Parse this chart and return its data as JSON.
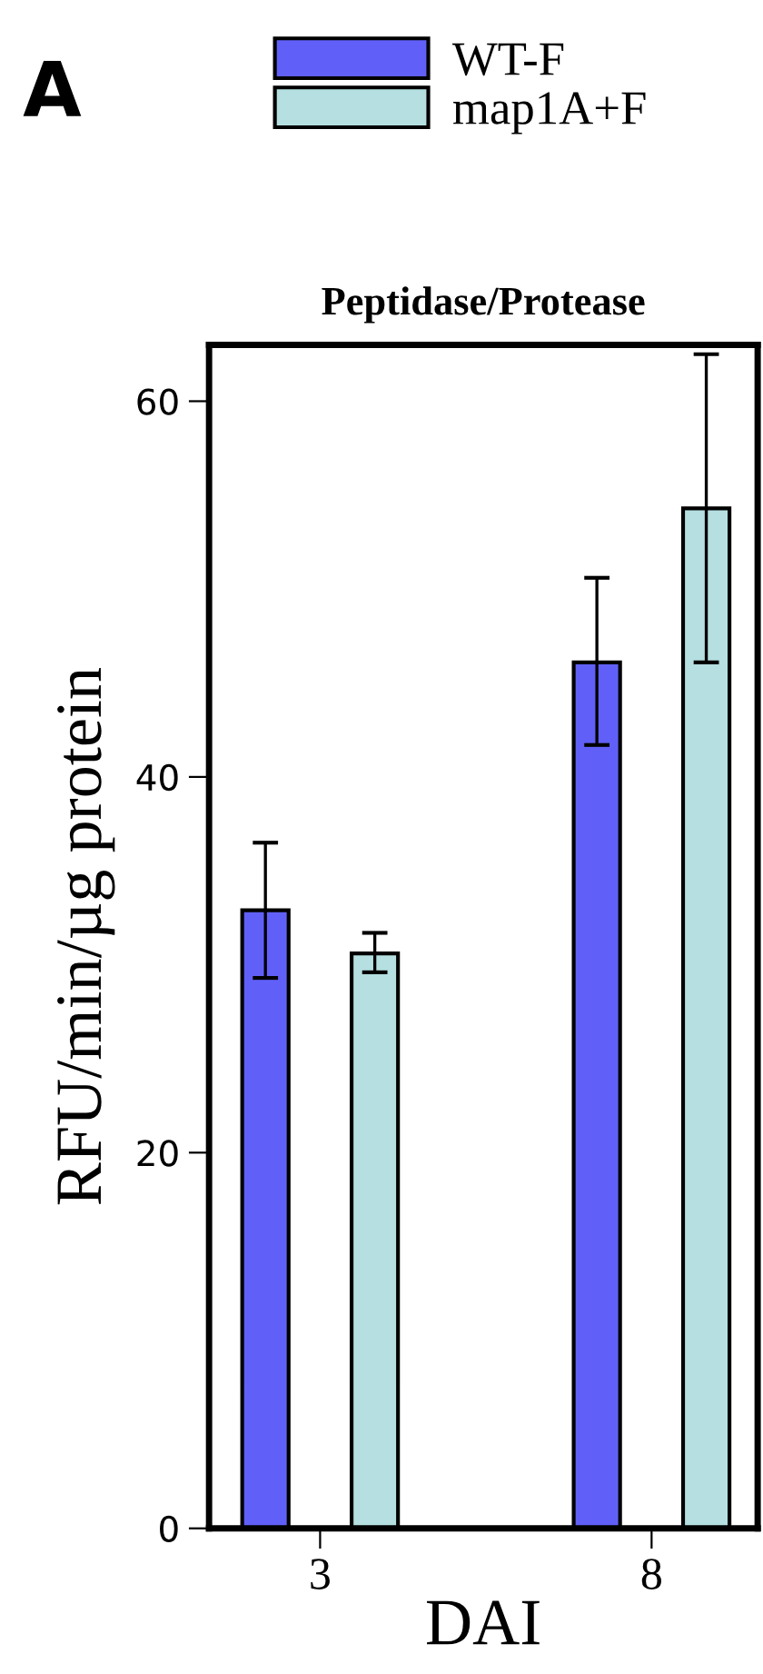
{
  "chart_data": {
    "type": "bar",
    "title": "Peptidase/Protease",
    "xlabel": "DAI",
    "ylabel": "RFU/min/µg protein",
    "annotations": [
      "A"
    ],
    "categories": [
      "3",
      "8"
    ],
    "series": [
      {
        "name": "WT-F",
        "color": "#6060f8",
        "values": [
          32.9,
          46.1
        ],
        "errors": [
          [
            29.3,
            36.5
          ],
          [
            41.7,
            50.6
          ]
        ]
      },
      {
        "name": "map1A+F",
        "color": "#b5dfe0",
        "values": [
          30.6,
          54.3
        ],
        "errors": [
          [
            29.6,
            31.7
          ],
          [
            46.1,
            62.5
          ]
        ]
      }
    ],
    "ylim": [
      0,
      63
    ],
    "yticks": [
      0,
      20,
      40,
      60
    ],
    "grid": false,
    "legend": "top left"
  }
}
